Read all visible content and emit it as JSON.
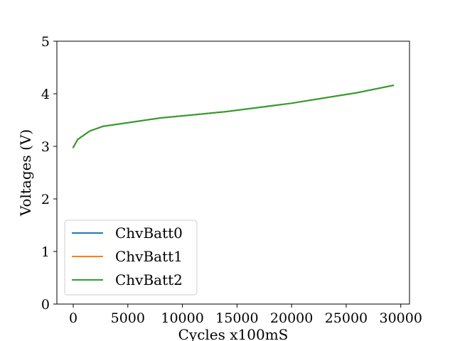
{
  "chart_data": {
    "type": "line",
    "title": "",
    "xlabel": "Cycles x100mS",
    "ylabel": "Voltages (V)",
    "xlim": [
      -1500,
      30800
    ],
    "ylim": [
      0,
      5
    ],
    "xticks": [
      0,
      5000,
      10000,
      15000,
      20000,
      25000,
      30000
    ],
    "yticks": [
      0,
      1,
      2,
      3,
      4,
      5
    ],
    "grid": false,
    "legend": "lower-left",
    "series": [
      {
        "name": "ChvBatt0",
        "color": "#1f77b4",
        "x": [
          0,
          400,
          1500,
          2700,
          5000,
          8000,
          11000,
          14000,
          17000,
          20000,
          23000,
          26000,
          29300
        ],
        "y": [
          2.98,
          3.13,
          3.29,
          3.38,
          3.45,
          3.54,
          3.6,
          3.66,
          3.74,
          3.82,
          3.92,
          4.02,
          4.16
        ]
      },
      {
        "name": "ChvBatt1",
        "color": "#ff7f0e",
        "x": [
          0,
          400,
          1500,
          2700,
          5000,
          8000,
          11000,
          14000,
          17000,
          20000,
          23000,
          26000,
          29300
        ],
        "y": [
          2.98,
          3.13,
          3.29,
          3.38,
          3.45,
          3.54,
          3.6,
          3.66,
          3.74,
          3.82,
          3.92,
          4.02,
          4.16
        ]
      },
      {
        "name": "ChvBatt2",
        "color": "#2ca02c",
        "x": [
          0,
          400,
          1500,
          2700,
          5000,
          8000,
          11000,
          14000,
          17000,
          20000,
          23000,
          26000,
          29300
        ],
        "y": [
          2.98,
          3.13,
          3.29,
          3.38,
          3.45,
          3.54,
          3.6,
          3.66,
          3.74,
          3.82,
          3.92,
          4.02,
          4.16
        ]
      }
    ]
  }
}
